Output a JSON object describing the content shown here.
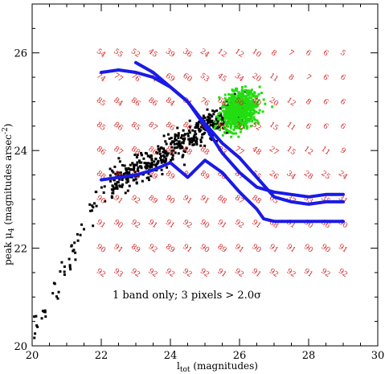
{
  "chart_data": {
    "type": "scatter",
    "xlabel": "l",
    "xlabel_sub": "tot",
    "xlabel_rest": " (magnitudes)",
    "ylabel": "peak μ",
    "ylabel_sub": "4",
    "ylabel_rest": "  (magnitudes arsec",
    "ylabel_sup": "-2",
    "ylabel_close": ")",
    "xlim": [
      20,
      30
    ],
    "ylim": [
      20,
      27
    ],
    "xticks": [
      20,
      22,
      24,
      26,
      28,
      30
    ],
    "yticks": [
      20,
      22,
      24,
      26
    ],
    "annotation": "1 band only; 3 pixels > 2.0σ",
    "colors": {
      "black_points": "#000000",
      "green_points": "#22dd11",
      "curves": "#1a1ae6",
      "grid_numbers": "#d42020",
      "frame": "#000000"
    },
    "curves": [
      {
        "x": [
          22,
          22.5,
          23,
          23.5,
          24,
          24.5,
          25,
          25.5,
          26,
          26.5,
          27,
          27.5,
          28,
          28.5,
          29
        ],
        "y": [
          25.6,
          25.65,
          25.6,
          25.5,
          25.3,
          25.0,
          24.5,
          23.95,
          23.55,
          23.25,
          23.15,
          23.1,
          23.05,
          23.1,
          23.1
        ]
      },
      {
        "x": [
          23,
          23.5,
          24,
          24.5,
          25,
          25.5,
          26,
          26.5,
          27,
          27.5,
          28,
          28.5,
          29
        ],
        "y": [
          25.8,
          25.6,
          25.3,
          25.0,
          24.55,
          24.15,
          23.85,
          23.45,
          23.05,
          22.95,
          22.9,
          22.95,
          22.95
        ]
      },
      {
        "x": [
          22,
          23,
          23.5,
          24,
          24.5,
          25,
          25.5,
          26,
          26.5,
          26.7,
          27,
          27.5,
          28,
          28.5,
          29
        ],
        "y": [
          23.4,
          23.5,
          23.6,
          23.75,
          23.45,
          23.8,
          23.55,
          23.15,
          22.8,
          22.6,
          22.55,
          22.55,
          22.55,
          22.55,
          22.55
        ]
      }
    ],
    "grid_numbers": {
      "x": [
        22,
        22.5,
        23,
        23.5,
        24,
        24.5,
        25,
        25.5,
        26,
        26.5,
        27,
        27.5,
        28,
        28.5,
        29
      ],
      "rows": [
        {
          "y": 26.0,
          "labels": [
            "54",
            "55",
            "52",
            "45",
            "39",
            "36",
            "24",
            "12",
            "12",
            "10",
            "8",
            "7",
            "6",
            "6",
            "5"
          ]
        },
        {
          "y": 25.5,
          "labels": [
            "74",
            "77",
            "76",
            "74",
            "69",
            "60",
            "53",
            "45",
            "34",
            "20",
            "11",
            "8",
            "7",
            "6",
            "6"
          ]
        },
        {
          "y": 25.0,
          "labels": [
            "85",
            "84",
            "86",
            "86",
            "84",
            "81",
            "76",
            "66",
            "50",
            "40",
            "20",
            "12",
            "8",
            "6",
            "6"
          ]
        },
        {
          "y": 24.5,
          "labels": [
            "85",
            "86",
            "85",
            "87",
            "86",
            "86",
            "85",
            "82",
            "70",
            "52",
            "15",
            "11",
            "6",
            "6",
            "6"
          ]
        },
        {
          "y": 24.0,
          "labels": [
            "86",
            "87",
            "88",
            "86",
            "88",
            "88",
            "88",
            "83",
            "77",
            "48",
            "27",
            "15",
            "12",
            "11",
            "9"
          ]
        },
        {
          "y": 23.5,
          "labels": [
            "88",
            "90",
            "89",
            "89",
            "89",
            "87",
            "89",
            "88",
            "87",
            "55",
            "26",
            "34",
            "28",
            "25",
            "24"
          ]
        },
        {
          "y": 23.0,
          "labels": [
            "90",
            "91",
            "92",
            "89",
            "90",
            "91",
            "91",
            "88",
            "87",
            "88",
            "65",
            "37",
            "33",
            "35",
            "31"
          ]
        },
        {
          "y": 22.5,
          "labels": [
            "91",
            "90",
            "92",
            "91",
            "91",
            "92",
            "90",
            "91",
            "92",
            "91",
            "88",
            "91",
            "90",
            "86",
            "90"
          ]
        },
        {
          "y": 22.0,
          "labels": [
            "90",
            "91",
            "89",
            "92",
            "89",
            "91",
            "90",
            "89",
            "91",
            "90",
            "91",
            "91",
            "90",
            "90",
            "91"
          ]
        },
        {
          "y": 21.5,
          "labels": [
            "92",
            "93",
            "92",
            "92",
            "92",
            "92",
            "92",
            "91",
            "92",
            "91",
            "92",
            "92",
            "91",
            "92",
            "92"
          ]
        }
      ]
    }
  }
}
